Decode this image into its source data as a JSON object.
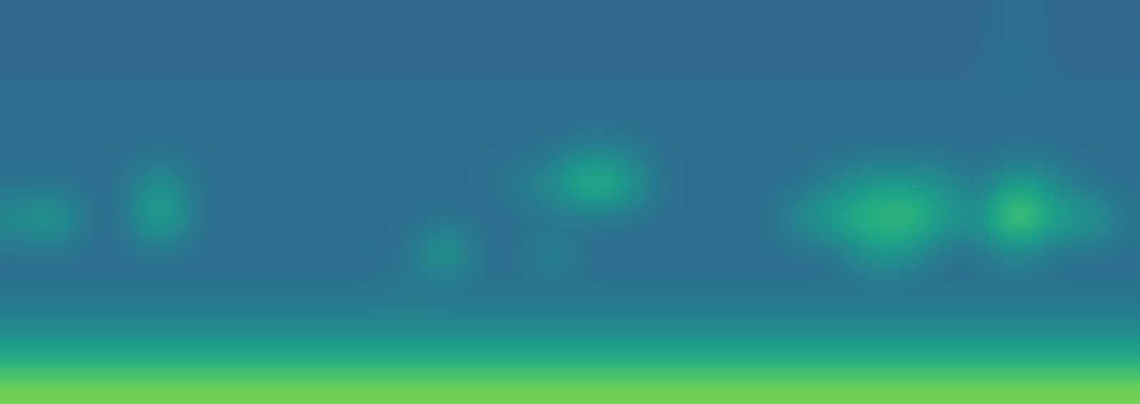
{
  "chart_data": {
    "type": "heatmap",
    "color": "viridis",
    "tick_labels": false,
    "color_range": [
      0,
      1
    ],
    "cells": [
      [
        0.33,
        0.33,
        0.33,
        0.33,
        0.33,
        0.33,
        0.33,
        0.33,
        0.33,
        0.33,
        0.33,
        0.33,
        0.33,
        0.33,
        0.33,
        0.33,
        0.33,
        0.33,
        0.33,
        0.33,
        0.33,
        0.33,
        0.33,
        0.33,
        0.33,
        0.33,
        0.33,
        0.33,
        0.4,
        0.33,
        0.33,
        0.33
      ],
      [
        0.34,
        0.34,
        0.34,
        0.34,
        0.34,
        0.34,
        0.34,
        0.34,
        0.34,
        0.34,
        0.34,
        0.34,
        0.34,
        0.34,
        0.34,
        0.34,
        0.34,
        0.34,
        0.34,
        0.34,
        0.34,
        0.34,
        0.34,
        0.34,
        0.34,
        0.34,
        0.34,
        0.34,
        0.4,
        0.34,
        0.34,
        0.34
      ],
      [
        0.35,
        0.35,
        0.35,
        0.35,
        0.35,
        0.35,
        0.35,
        0.35,
        0.35,
        0.35,
        0.35,
        0.35,
        0.35,
        0.35,
        0.35,
        0.35,
        0.35,
        0.35,
        0.35,
        0.35,
        0.35,
        0.35,
        0.35,
        0.35,
        0.35,
        0.35,
        0.35,
        0.35,
        0.4,
        0.35,
        0.35,
        0.35
      ],
      [
        0.36,
        0.36,
        0.36,
        0.36,
        0.36,
        0.36,
        0.36,
        0.36,
        0.36,
        0.36,
        0.36,
        0.36,
        0.36,
        0.36,
        0.36,
        0.36,
        0.36,
        0.36,
        0.36,
        0.36,
        0.36,
        0.36,
        0.36,
        0.36,
        0.36,
        0.36,
        0.36,
        0.36,
        0.38,
        0.36,
        0.36,
        0.36
      ],
      [
        0.37,
        0.37,
        0.37,
        0.37,
        0.37,
        0.37,
        0.37,
        0.37,
        0.37,
        0.37,
        0.37,
        0.37,
        0.37,
        0.37,
        0.37,
        0.37,
        0.45,
        0.42,
        0.37,
        0.37,
        0.37,
        0.37,
        0.37,
        0.37,
        0.37,
        0.37,
        0.37,
        0.37,
        0.37,
        0.37,
        0.37,
        0.37
      ],
      [
        0.37,
        0.37,
        0.37,
        0.37,
        0.55,
        0.37,
        0.37,
        0.37,
        0.37,
        0.37,
        0.37,
        0.37,
        0.37,
        0.37,
        0.42,
        0.5,
        0.72,
        0.62,
        0.37,
        0.37,
        0.37,
        0.37,
        0.37,
        0.45,
        0.55,
        0.55,
        0.5,
        0.37,
        0.6,
        0.48,
        0.37,
        0.37
      ],
      [
        0.5,
        0.6,
        0.37,
        0.37,
        0.68,
        0.37,
        0.37,
        0.37,
        0.37,
        0.37,
        0.37,
        0.37,
        0.37,
        0.37,
        0.37,
        0.37,
        0.37,
        0.37,
        0.37,
        0.37,
        0.37,
        0.37,
        0.5,
        0.62,
        0.68,
        0.72,
        0.58,
        0.5,
        0.85,
        0.6,
        0.58,
        0.4
      ],
      [
        0.37,
        0.37,
        0.37,
        0.37,
        0.37,
        0.37,
        0.37,
        0.37,
        0.37,
        0.37,
        0.37,
        0.37,
        0.6,
        0.37,
        0.37,
        0.48,
        0.37,
        0.37,
        0.37,
        0.37,
        0.37,
        0.37,
        0.37,
        0.37,
        0.55,
        0.5,
        0.37,
        0.37,
        0.48,
        0.37,
        0.37,
        0.37
      ],
      [
        0.38,
        0.38,
        0.38,
        0.38,
        0.38,
        0.38,
        0.38,
        0.38,
        0.38,
        0.38,
        0.38,
        0.42,
        0.38,
        0.38,
        0.38,
        0.38,
        0.38,
        0.38,
        0.38,
        0.38,
        0.38,
        0.38,
        0.38,
        0.38,
        0.38,
        0.38,
        0.38,
        0.38,
        0.38,
        0.38,
        0.38,
        0.38
      ],
      [
        0.43,
        0.43,
        0.43,
        0.43,
        0.43,
        0.43,
        0.43,
        0.43,
        0.43,
        0.43,
        0.43,
        0.43,
        0.43,
        0.43,
        0.43,
        0.43,
        0.43,
        0.43,
        0.43,
        0.43,
        0.43,
        0.43,
        0.43,
        0.43,
        0.43,
        0.43,
        0.43,
        0.43,
        0.43,
        0.43,
        0.43,
        0.43
      ],
      [
        0.58,
        0.58,
        0.58,
        0.58,
        0.58,
        0.58,
        0.58,
        0.58,
        0.58,
        0.58,
        0.58,
        0.58,
        0.58,
        0.58,
        0.58,
        0.58,
        0.58,
        0.58,
        0.58,
        0.58,
        0.58,
        0.58,
        0.58,
        0.58,
        0.58,
        0.58,
        0.58,
        0.58,
        0.58,
        0.58,
        0.58,
        0.58
      ],
      [
        0.8,
        0.8,
        0.8,
        0.8,
        0.8,
        0.8,
        0.8,
        0.8,
        0.8,
        0.8,
        0.8,
        0.8,
        0.8,
        0.8,
        0.8,
        0.8,
        0.8,
        0.8,
        0.8,
        0.8,
        0.8,
        0.8,
        0.8,
        0.8,
        0.8,
        0.8,
        0.8,
        0.8,
        0.8,
        0.8,
        0.8,
        0.8
      ]
    ]
  }
}
